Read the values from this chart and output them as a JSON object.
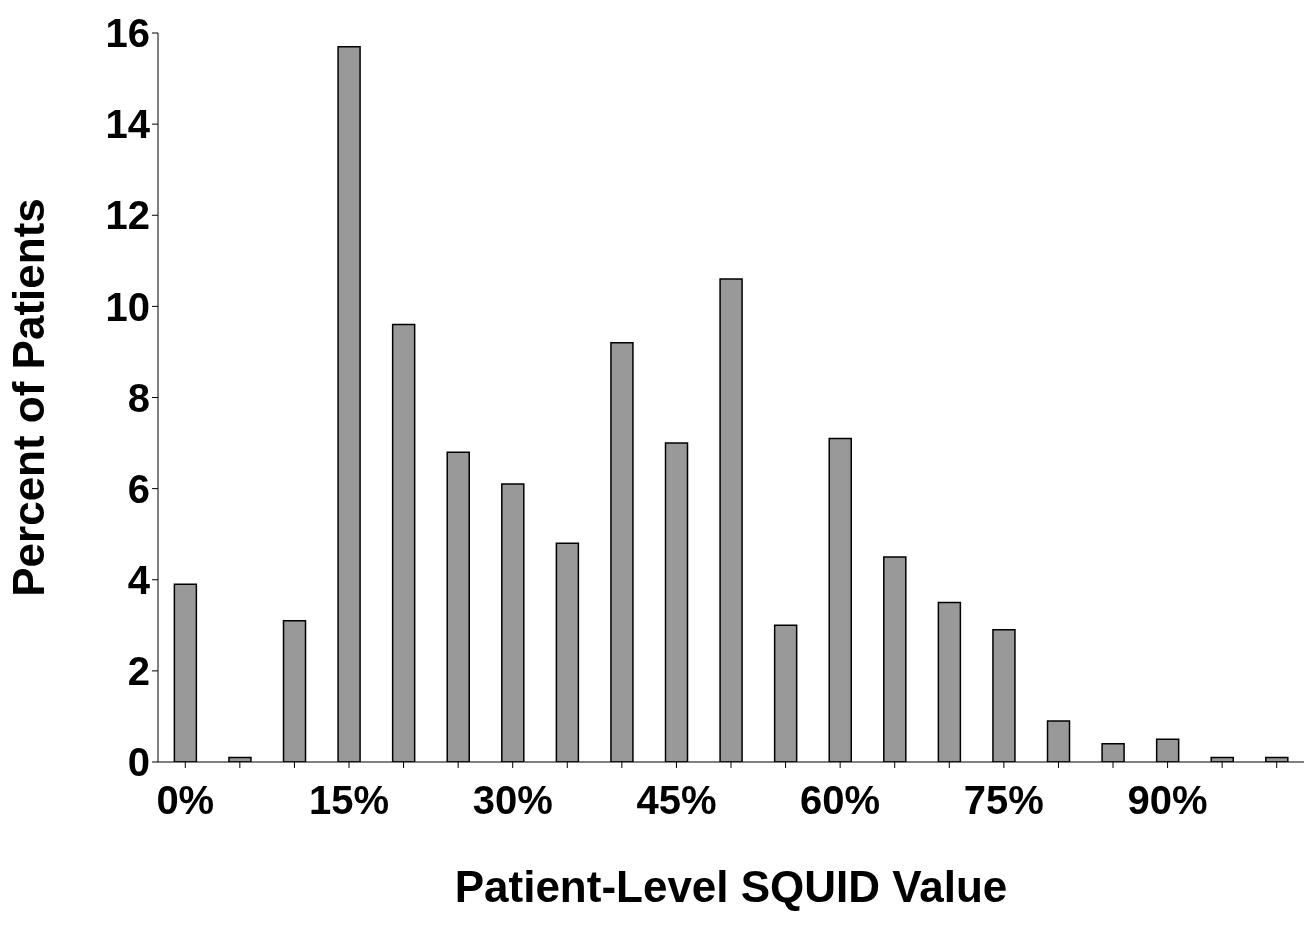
{
  "chart_data": {
    "type": "bar",
    "xlabel": "Patient-Level SQUID Value",
    "ylabel": "Percent of Patients",
    "categories": [
      "0%",
      null,
      null,
      "15%",
      null,
      null,
      "30%",
      null,
      null,
      "45%",
      null,
      null,
      "60%",
      null,
      null,
      "75%",
      null,
      null,
      "90%",
      null,
      null
    ],
    "values": [
      3.9,
      0.1,
      3.1,
      15.7,
      9.6,
      6.8,
      6.1,
      4.8,
      9.2,
      7.0,
      10.6,
      3.0,
      7.1,
      4.5,
      3.5,
      2.9,
      0.9,
      0.4,
      0.5,
      0.1,
      0.1
    ],
    "color": "#999999",
    "ylim": [
      0,
      16
    ],
    "yticks": [
      0,
      2,
      4,
      6,
      8,
      10,
      12,
      14,
      16
    ],
    "grid": false,
    "legend": false
  }
}
